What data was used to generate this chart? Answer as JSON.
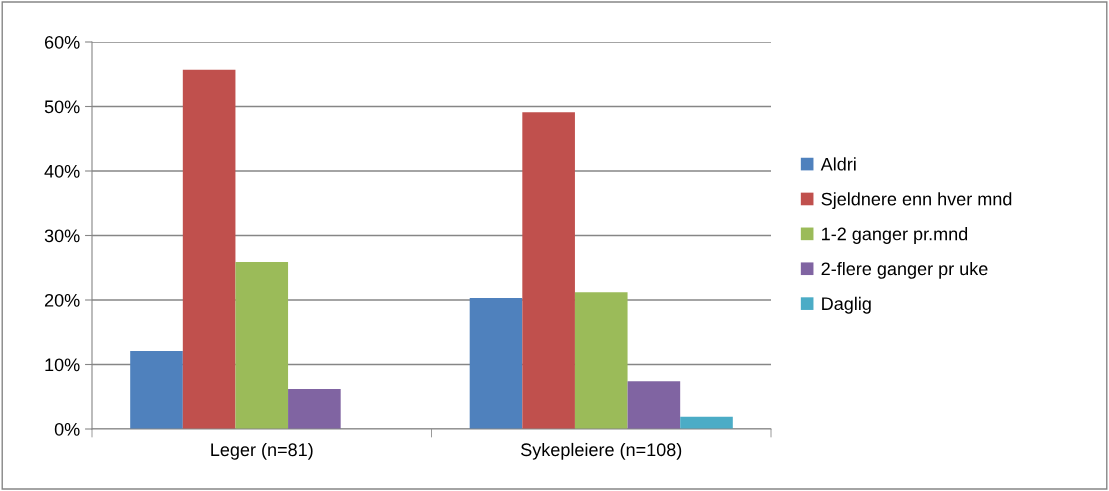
{
  "chart_data": {
    "type": "bar",
    "categories": [
      "Leger (n=81)",
      "Sykepleiere (n=108)"
    ],
    "series": [
      {
        "name": "Aldri",
        "color": "#4f81bd",
        "values": [
          12.1,
          20.3
        ]
      },
      {
        "name": "Sjeldnere enn hver mnd",
        "color": "#c0504d",
        "values": [
          55.7,
          49.1
        ]
      },
      {
        "name": "1-2 ganger pr.mnd",
        "color": "#9bbb59",
        "values": [
          25.9,
          21.2
        ]
      },
      {
        "name": "2-flere ganger pr uke",
        "color": "#8064a2",
        "values": [
          6.2,
          7.4
        ]
      },
      {
        "name": "Daglig",
        "color": "#4bacc6",
        "values": [
          0,
          1.9
        ]
      }
    ],
    "ylim": [
      0,
      60
    ],
    "yticks": [
      {
        "value": 0,
        "label": "0%"
      },
      {
        "value": 10,
        "label": "10%"
      },
      {
        "value": 20,
        "label": "20%"
      },
      {
        "value": 30,
        "label": "30%"
      },
      {
        "value": 40,
        "label": "40%"
      },
      {
        "value": 50,
        "label": "50%"
      },
      {
        "value": 60,
        "label": "60%"
      }
    ],
    "grid": "y",
    "legend": "right"
  }
}
